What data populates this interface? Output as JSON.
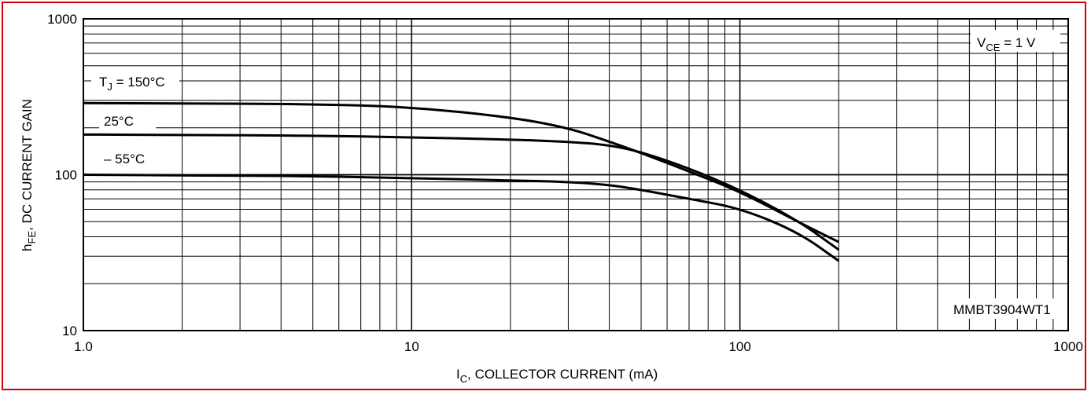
{
  "chart_data": {
    "type": "line",
    "x_scale": "log",
    "y_scale": "log",
    "xlim": [
      1,
      1000
    ],
    "ylim": [
      10,
      1000
    ],
    "x_ticks": [
      "1.0",
      "10",
      "100",
      "1000"
    ],
    "y_ticks": [
      "10",
      "100",
      "1000"
    ],
    "xlabel": {
      "main": "I",
      "sub": "C",
      "rest": ", COLLECTOR CURRENT (mA)"
    },
    "ylabel": {
      "main": "h",
      "sub": "FE",
      "rest": ", DC CURRENT GAIN"
    },
    "grid": true,
    "annotations": {
      "condition": {
        "main": "V",
        "sub": "CE",
        "rest": " = 1 V"
      },
      "part_number": "MMBT3904WT1",
      "tj_label": {
        "main": "T",
        "sub": "J",
        "rest": " = 150°C"
      },
      "label_25": "25°C",
      "label_m55": "– 55°C"
    },
    "series": [
      {
        "points": [
          [
            1,
            288
          ],
          [
            2,
            287
          ],
          [
            5,
            284
          ],
          [
            10,
            272
          ],
          [
            20,
            234
          ],
          [
            30,
            200
          ],
          [
            40,
            163
          ],
          [
            50,
            138
          ],
          [
            70,
            105
          ],
          [
            100,
            78
          ],
          [
            150,
            50
          ],
          [
            200,
            37
          ]
        ]
      },
      {
        "points": [
          [
            1,
            181
          ],
          [
            2,
            180
          ],
          [
            5,
            178
          ],
          [
            10,
            174
          ],
          [
            20,
            168
          ],
          [
            30,
            163
          ],
          [
            40,
            155
          ],
          [
            50,
            140
          ],
          [
            70,
            110
          ],
          [
            100,
            80
          ],
          [
            150,
            51
          ],
          [
            200,
            33
          ]
        ]
      },
      {
        "points": [
          [
            1,
            100
          ],
          [
            2,
            99
          ],
          [
            5,
            98
          ],
          [
            10,
            95
          ],
          [
            20,
            92
          ],
          [
            30,
            90
          ],
          [
            40,
            86
          ],
          [
            50,
            80
          ],
          [
            70,
            70
          ],
          [
            100,
            61
          ],
          [
            150,
            43
          ],
          [
            200,
            28
          ]
        ]
      }
    ]
  }
}
